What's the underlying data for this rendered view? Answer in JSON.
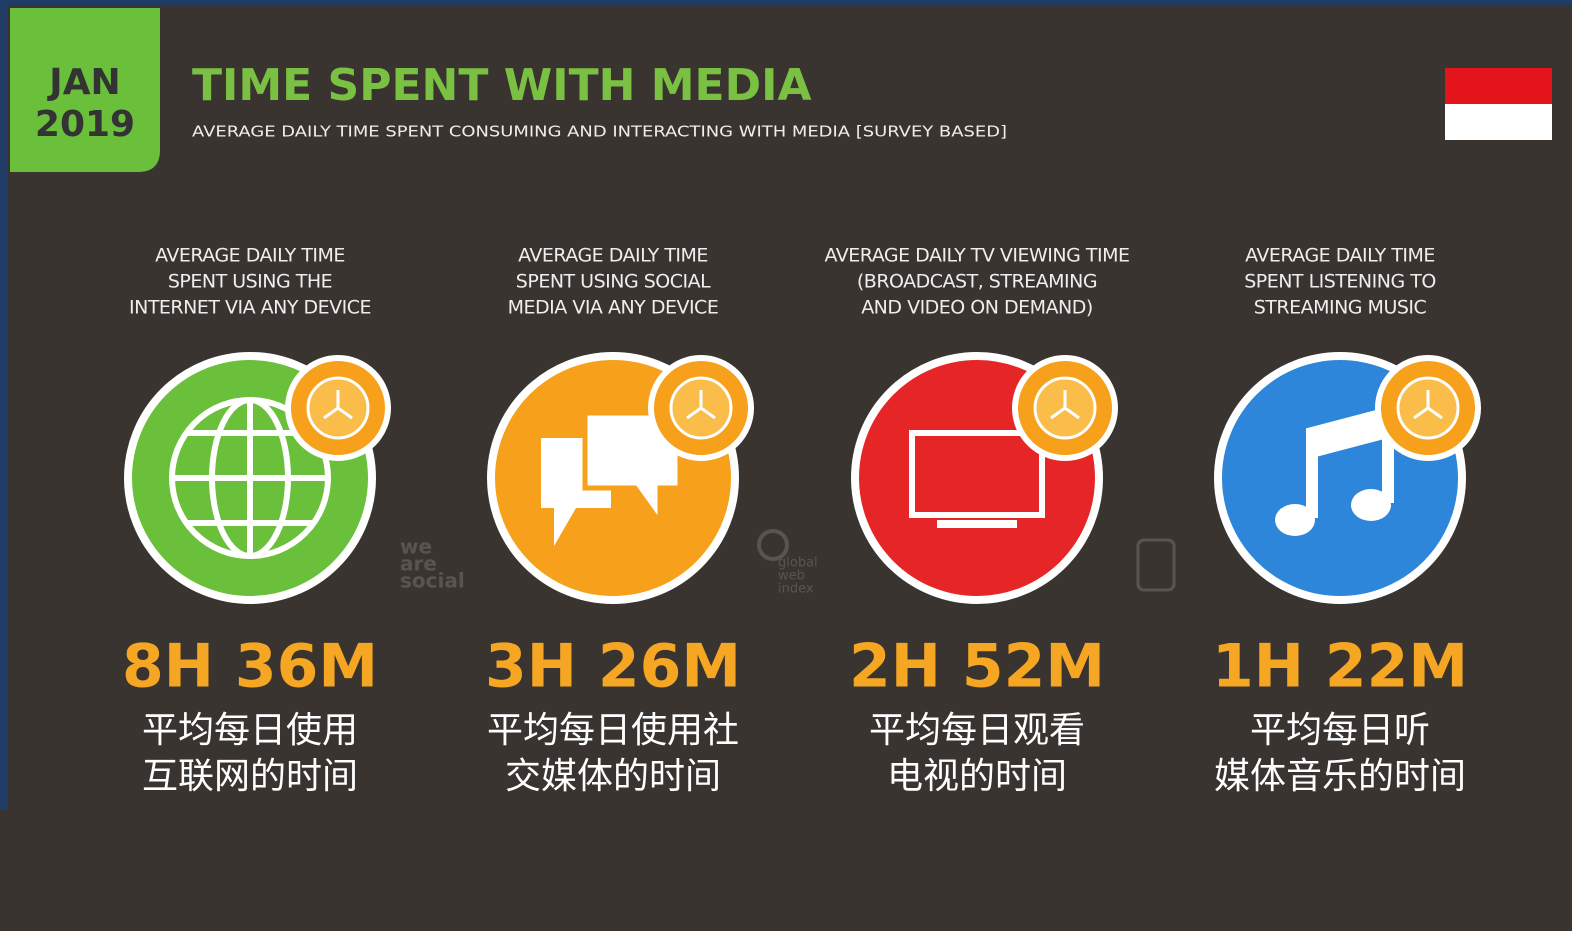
{
  "header": {
    "month": "JAN",
    "year": "2019",
    "title": "TIME SPENT WITH MEDIA",
    "subtitle": "AVERAGE DAILY TIME SPENT CONSUMING AND INTERACTING WITH MEDIA [SURVEY BASED]"
  },
  "cards": [
    {
      "caption": [
        "AVERAGE DAILY TIME",
        "SPENT USING THE",
        "INTERNET VIA ANY DEVICE"
      ],
      "value": "8H 36M",
      "label": [
        "平均每日使用",
        "互联网的时间"
      ]
    },
    {
      "caption": [
        "AVERAGE DAILY TIME",
        "SPENT USING SOCIAL",
        "MEDIA VIA ANY DEVICE"
      ],
      "value": "3H 26M",
      "label": [
        "平均每日使用社",
        "交媒体的时间"
      ]
    },
    {
      "caption": [
        "AVERAGE DAILY TV VIEWING TIME",
        "(BROADCAST, STREAMING",
        "AND VIDEO ON DEMAND)"
      ],
      "value": "2H 52M",
      "label": [
        "平均每日观看",
        "电视的时间"
      ]
    },
    {
      "caption": [
        "AVERAGE DAILY TIME",
        "SPENT LISTENING TO",
        "STREAMING MUSIC"
      ],
      "value": "1H 22M",
      "label": [
        "平均每日听",
        "媒体音乐的时间"
      ]
    }
  ],
  "watermarks": {
    "we_are_social": [
      "we",
      "are",
      "social"
    ],
    "global_web_index": [
      "global",
      "web",
      "index"
    ]
  }
}
